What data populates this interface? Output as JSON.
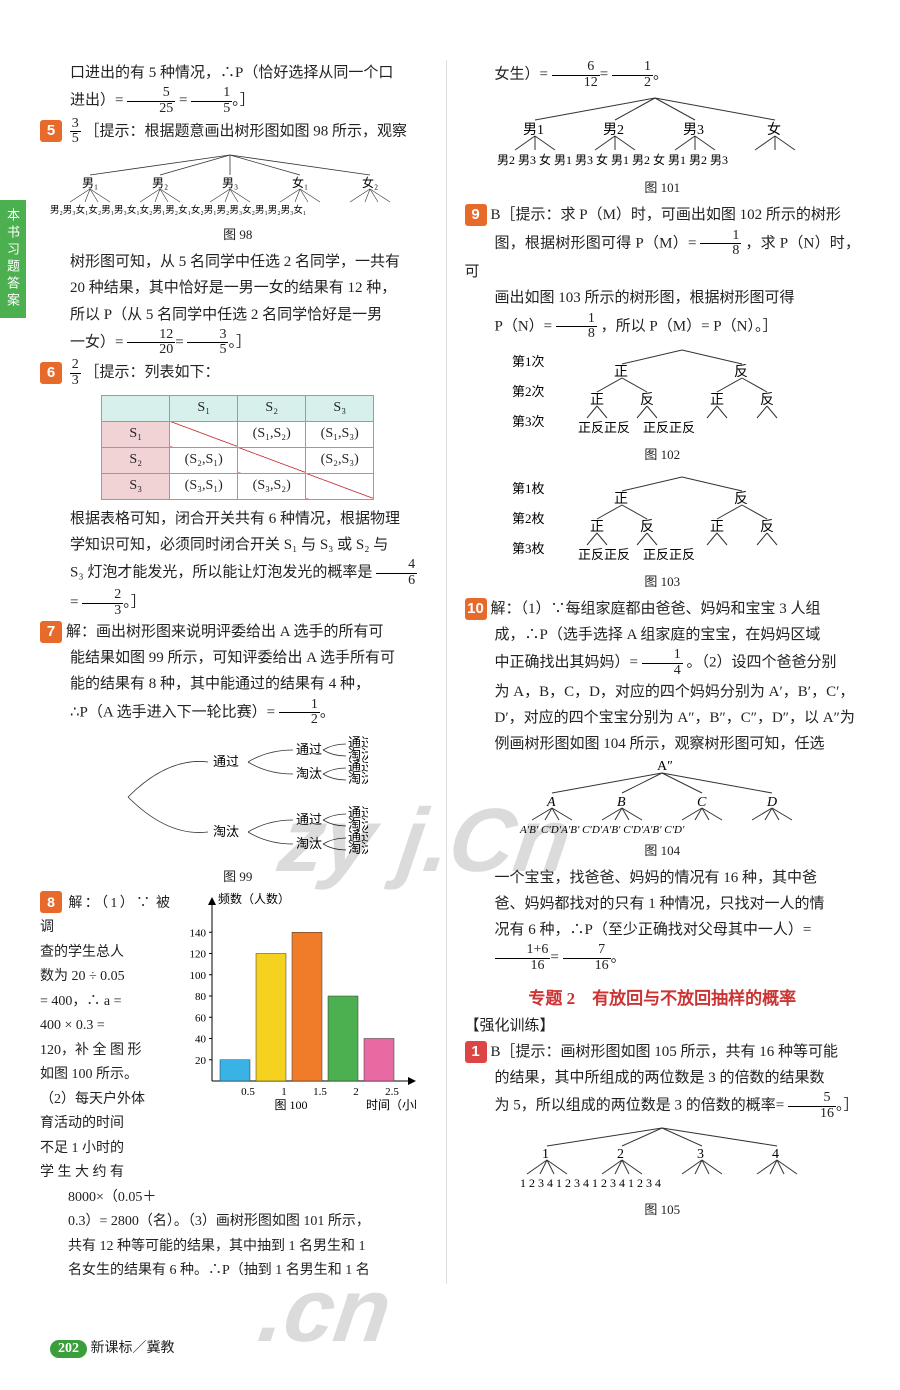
{
  "tab": "本书习题答案",
  "leftCol": {
    "intro": "口进出的有 5 种情况，∴P（恰好选择从同一个口",
    "introFrac": {
      "t": "5",
      "b": "25",
      "eq_t": "1",
      "eq_b": "5"
    },
    "q5": {
      "hint": "［提示：根据题意画出树形图如图 98 所示，观察",
      "frac": {
        "t": "3",
        "b": "5"
      },
      "treeTop": [
        "男₁",
        "男₂",
        "男₃",
        "女₁",
        "女₂"
      ],
      "treeLeaf": "男₂男₃女₁女₂男₁男₃女₁女₂男₁男₂女₁女₂男₁男₂男₃女₂男₁男₂男₃女₁",
      "cap": "图 98",
      "body1": "树形图可知，从 5 名同学中任选 2 名同学，一共有",
      "body2": "20 种结果，其中恰好是一男一女的结果有 12 种，",
      "body3": "所以 P（从 5 名同学中任选 2 名同学恰好是一男",
      "body4": "一女）=",
      "frac2": {
        "t": "12",
        "b": "20"
      },
      "frac3": {
        "t": "3",
        "b": "5"
      }
    },
    "q6": {
      "frac": {
        "t": "2",
        "b": "3"
      },
      "hint": "［提示：列表如下：",
      "table": {
        "headers": [
          "",
          "S₁",
          "S₂",
          "S₃"
        ],
        "rows": [
          [
            "S₁",
            "",
            "(S₁,S₂)",
            "(S₁,S₃)"
          ],
          [
            "S₂",
            "(S₂,S₁)",
            "",
            "(S₂,S₃)"
          ],
          [
            "S₃",
            "(S₃,S₁)",
            "(S₃,S₂)",
            ""
          ]
        ]
      },
      "body1": "根据表格可知，闭合开关共有 6 种情况，根据物理",
      "body2": "学知识可知，必须同时闭合开关 S₁ 与 S₃ 或 S₂ 与",
      "body3": "S₃ 灯泡才能发光，所以能让灯泡发光的概率是",
      "frac2": {
        "t": "4",
        "b": "6"
      },
      "frac3": {
        "t": "2",
        "b": "3"
      }
    },
    "q7": {
      "body1": "解：画出树形图来说明评委给出 A 选手的所有可",
      "body2": "能结果如图 99 所示，可知评委给出 A 选手所有可",
      "body3": "能的结果有 8 种，其中能通过的结果有 4 种，",
      "body4": "∴P（A 选手进入下一轮比赛）=",
      "frac": {
        "t": "1",
        "b": "2"
      },
      "tree": {
        "l1": [
          "通过",
          "淘汰"
        ],
        "l2": [
          "通过",
          "淘汰"
        ],
        "l3": [
          "通过",
          "淘汰"
        ]
      },
      "cap": "图 99"
    },
    "q8": {
      "title": "解：（1）∵ 被 调",
      "lines": [
        "查的学生总人",
        "数为 20 ÷ 0.05",
        "= 400，∴ a =",
        "400 × 0.3 =",
        "120，补 全 图 形",
        "如图 100 所示。",
        "（2）每天户外体",
        "育活动的时间",
        "不足 1 小时的",
        "学 生 大 约 有"
      ],
      "calc": "8000×（0.05＋",
      "calc2": "0.3）= 2800（名）。（3）画树形图如图 101 所示，",
      "calc3": "共有 12 种等可能的结果，其中抽到 1 名男生和 1",
      "calc4": "名女生的结果有 6 种。∴P（抽到 1 名男生和 1 名",
      "chart": {
        "ylabel": "频数（人数）",
        "xlabel": "时间（小时）",
        "yticks": [
          20,
          40,
          60,
          80,
          100,
          120,
          140
        ],
        "xticks": [
          "0.5",
          "1",
          "1.5",
          "2",
          "2.5"
        ],
        "bars": [
          {
            "v": 20,
            "c": "#39b2e6"
          },
          {
            "v": 120,
            "c": "#f5d21f"
          },
          {
            "v": 140,
            "c": "#f07c2a"
          },
          {
            "v": 80,
            "c": "#4caf50"
          },
          {
            "v": 40,
            "c": "#e86aa3"
          }
        ],
        "ylim": 160,
        "cap": "图 100"
      }
    }
  },
  "rightCol": {
    "intro": "女生）=",
    "introFrac": {
      "t": "6",
      "b": "12",
      "eq_t": "1",
      "eq_b": "2"
    },
    "tree101": {
      "top": [
        "男1",
        "男2",
        "男3",
        "女"
      ],
      "leaf": "男2 男3 女 男1 男3 女 男1 男2 女 男1 男2 男3",
      "cap": "图 101"
    },
    "q9": {
      "hint": "B［提示：求 P（M）时，可画出如图 102 所示的树形",
      "body1": "图，根据树形图可得 P（M）=",
      "frac1": {
        "t": "1",
        "b": "8"
      },
      "body2": "，求 P（N）时，可",
      "body3": "画出如图 103 所示的树形图，根据树形图可得",
      "body4": "P（N）=",
      "frac2": {
        "t": "1",
        "b": "8"
      },
      "body5": "，所以 P（M）= P（N）。］",
      "tree102": {
        "labels": [
          "第1次",
          "第2次",
          "第3次"
        ],
        "vals": [
          "正",
          "反"
        ],
        "leaf": "正反正反　正反正反",
        "cap": "图 102"
      },
      "tree103": {
        "labels": [
          "第1枚",
          "第2枚",
          "第3枚"
        ],
        "vals": [
          "正",
          "反"
        ],
        "leaf": "正反正反　正反正反",
        "cap": "图 103"
      }
    },
    "q10": {
      "body1": "解：（1）∵每组家庭都由爸爸、妈妈和宝宝 3 人组",
      "body2": "成，∴P（选手选择 A 组家庭的宝宝，在妈妈区域",
      "body3": "中正确找出其妈妈）=",
      "frac1": {
        "t": "1",
        "b": "4"
      },
      "body3b": "。（2）设四个爸爸分别",
      "body4": "为 A，B，C，D，对应的四个妈妈分别为 A′，B′，C′，",
      "body5": "D′，对应的四个宝宝分别为 A″，B″，C″，D″，以 A″为",
      "body6": "例画树形图如图 104 所示，观察树形图可知，任选",
      "tree": {
        "root": "A″",
        "mid": [
          "A",
          "B",
          "C",
          "D"
        ],
        "leaf": "A′B′ C′D′A′B′ C′D′A′B′ C′D′A′B′ C′D′",
        "cap": "图 104"
      },
      "body7": "一个宝宝，找爸爸、妈妈的情况有 16 种，其中爸",
      "body8": "爸、妈妈都找对的只有 1 种情况，只找对一人的情",
      "body9": "况有 6 种，∴P（至少正确找对父母其中一人）=",
      "frac2": {
        "t": "1+6",
        "b": "16"
      },
      "frac3": {
        "t": "7",
        "b": "16"
      }
    },
    "section": "专题 2　有放回与不放回抽样的概率",
    "sectionSub": "【强化训练】",
    "q1": {
      "body1": "B［提示：画树形图如图 105 所示，共有 16 种等可能",
      "body2": "的结果，其中所组成的两位数是 3 的倍数的结果数",
      "body3": "为 5，所以组成的两位数是 3 的倍数的概率=",
      "frac": {
        "t": "5",
        "b": "16"
      },
      "tree": {
        "top": [
          "1",
          "2",
          "3",
          "4"
        ],
        "leaf": "1 2 3 4 1 2 3 4 1 2 3 4 1 2 3 4",
        "cap": "图 105"
      }
    }
  },
  "footer": {
    "page": "202",
    "label": "新课标／冀教"
  },
  "watermarks": {
    "w1": "zy j.Cn",
    "w2": ".cn"
  }
}
